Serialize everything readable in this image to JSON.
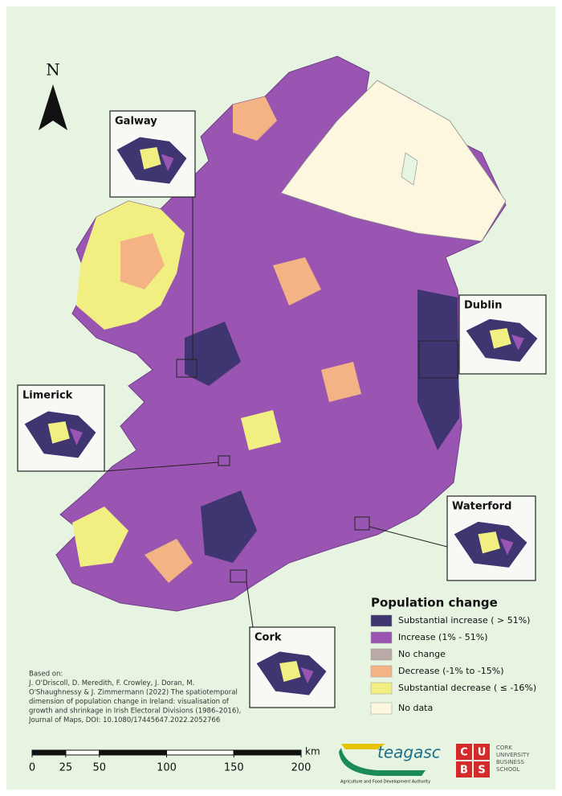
{
  "north_arrow": "N",
  "insets": [
    {
      "label": "Galway"
    },
    {
      "label": "Dublin"
    },
    {
      "label": "Limerick"
    },
    {
      "label": "Waterford"
    },
    {
      "label": "Cork"
    }
  ],
  "legend": {
    "title": "Population change",
    "items": [
      {
        "label": "Substantial increase ( > 51%)",
        "color": "#3f3570"
      },
      {
        "label": "Increase (1% - 51%)",
        "color": "#9a55b3"
      },
      {
        "label": "No change",
        "color": "#b9aaa8"
      },
      {
        "label": "Decrease (-1% to -15%)",
        "color": "#f4b384"
      },
      {
        "label": "Substantial decrease ( ≤ -16%)",
        "color": "#f1ef82"
      },
      {
        "label": "No data",
        "color": "#fdf7e0"
      }
    ]
  },
  "citation": [
    "Based on:",
    "J. O'Driscoll, D. Meredith, F. Crowley, J. Doran, M.",
    "O'Shaughnessy & J. Zimmermann (2022) The spatiotemporal",
    "dimension of population change in Ireland: visualisation of",
    "growth and shrinkage in Irish Electoral Divisions (1986–2016),",
    "Journal of Maps, DOI: 10.1080/17445647.2022.2052766"
  ],
  "scale_bar": {
    "unit": "km",
    "ticks": [
      0,
      25,
      50,
      100,
      150,
      200
    ]
  },
  "logos": {
    "teagasc": "teagasc",
    "teagasc_tagline": "Agriculture and Food Development Authority",
    "cubs_letters": [
      "C",
      "U",
      "B",
      "S"
    ],
    "cubs_name": [
      "CORK",
      "UNIVERSITY",
      "BUSINESS",
      "SCHOOL"
    ]
  }
}
